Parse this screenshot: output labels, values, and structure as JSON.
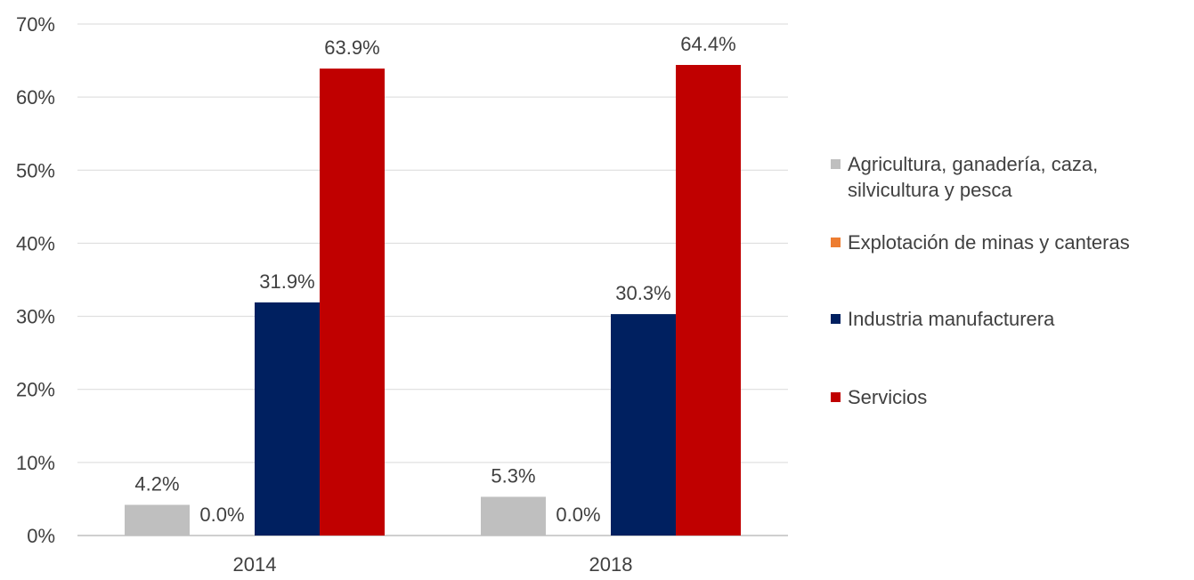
{
  "chart_data": {
    "type": "bar",
    "categories": [
      "2014",
      "2018"
    ],
    "series": [
      {
        "name": "Agricultura, ganadería, caza, silvicultura y pesca",
        "values": [
          4.2,
          5.3
        ],
        "labels": [
          "4.2%",
          "5.3%"
        ],
        "color": "#bfbfbf"
      },
      {
        "name": "Explotación de minas y canteras",
        "values": [
          0.0,
          0.0
        ],
        "labels": [
          "0.0%",
          "0.0%"
        ],
        "color": "#ed7d31"
      },
      {
        "name": "Industria manufacturera",
        "values": [
          31.9,
          30.3
        ],
        "labels": [
          "31.9%",
          "30.3%"
        ],
        "color": "#002060"
      },
      {
        "name": "Servicios",
        "values": [
          63.9,
          64.4
        ],
        "labels": [
          "63.9%",
          "64.4%"
        ],
        "color": "#c00000"
      }
    ],
    "yticks": [
      "0%",
      "10%",
      "20%",
      "30%",
      "40%",
      "50%",
      "60%",
      "70%"
    ],
    "ylim": [
      0,
      70
    ],
    "grid": true,
    "legend": "right",
    "title": "",
    "xlabel": "",
    "ylabel": ""
  }
}
